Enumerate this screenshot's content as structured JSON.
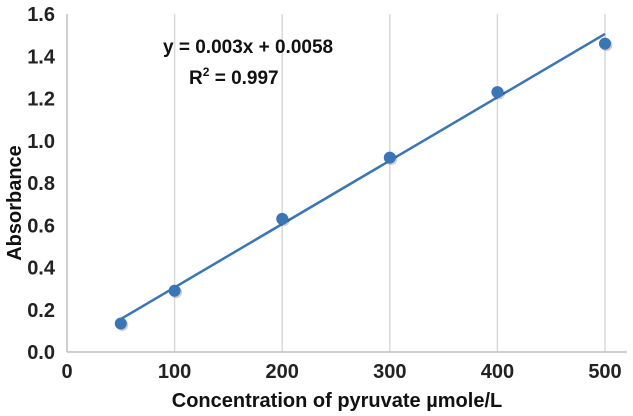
{
  "chart_data": {
    "type": "scatter",
    "xlabel": "Concentration of pyruvate µmole/L",
    "ylabel": "Absorbance",
    "xlim": [
      0,
      500
    ],
    "ylim": [
      0.0,
      1.6
    ],
    "x_ticks": [
      0,
      100,
      200,
      300,
      400,
      500
    ],
    "y_ticks": [
      0.0,
      0.2,
      0.4,
      0.6,
      0.8,
      1.0,
      1.2,
      1.4,
      1.6
    ],
    "x_tick_labels": [
      "0",
      "100",
      "200",
      "300",
      "400",
      "500"
    ],
    "y_tick_labels": [
      "0.0",
      "0.2",
      "0.4",
      "0.6",
      "0.8",
      "1.0",
      "1.2",
      "1.4",
      "1.6"
    ],
    "grid": "vertical",
    "series": [
      {
        "x": [
          50,
          100,
          200,
          300,
          400,
          500
        ],
        "y": [
          0.135,
          0.29,
          0.63,
          0.92,
          1.23,
          1.46
        ]
      }
    ],
    "trendline": {
      "slope": 0.003,
      "intercept": 0.0058,
      "x_range": [
        50,
        500
      ]
    },
    "annotations": {
      "equation": "y = 0.003x + 0.0058",
      "r2_prefix": "R",
      "r2_sup": "2",
      "r2_value": " = 0.997"
    },
    "colors": {
      "marker": "#3a75b6",
      "line": "#3a75b6",
      "grid": "#d9d9d9",
      "axis": "#bfbfbf"
    }
  }
}
